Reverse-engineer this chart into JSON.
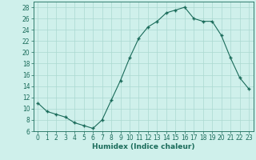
{
  "x": [
    0,
    1,
    2,
    3,
    4,
    5,
    6,
    7,
    8,
    9,
    10,
    11,
    12,
    13,
    14,
    15,
    16,
    17,
    18,
    19,
    20,
    21,
    22,
    23
  ],
  "y": [
    11,
    9.5,
    9,
    8.5,
    7.5,
    7,
    6.5,
    8,
    11.5,
    15,
    19,
    22.5,
    24.5,
    25.5,
    27,
    27.5,
    28,
    26,
    25.5,
    25.5,
    23,
    19,
    15.5,
    13.5
  ],
  "line_color": "#1a6b5a",
  "marker_color": "#1a6b5a",
  "bg_color": "#cff0eb",
  "grid_color": "#aad8d0",
  "xlabel": "Humidex (Indice chaleur)",
  "xlim": [
    -0.5,
    23.5
  ],
  "ylim": [
    6,
    29
  ],
  "yticks": [
    6,
    8,
    10,
    12,
    14,
    16,
    18,
    20,
    22,
    24,
    26,
    28
  ],
  "xticks": [
    0,
    1,
    2,
    3,
    4,
    5,
    6,
    7,
    8,
    9,
    10,
    11,
    12,
    13,
    14,
    15,
    16,
    17,
    18,
    19,
    20,
    21,
    22,
    23
  ],
  "xlabel_fontsize": 6.5,
  "tick_fontsize": 5.5
}
